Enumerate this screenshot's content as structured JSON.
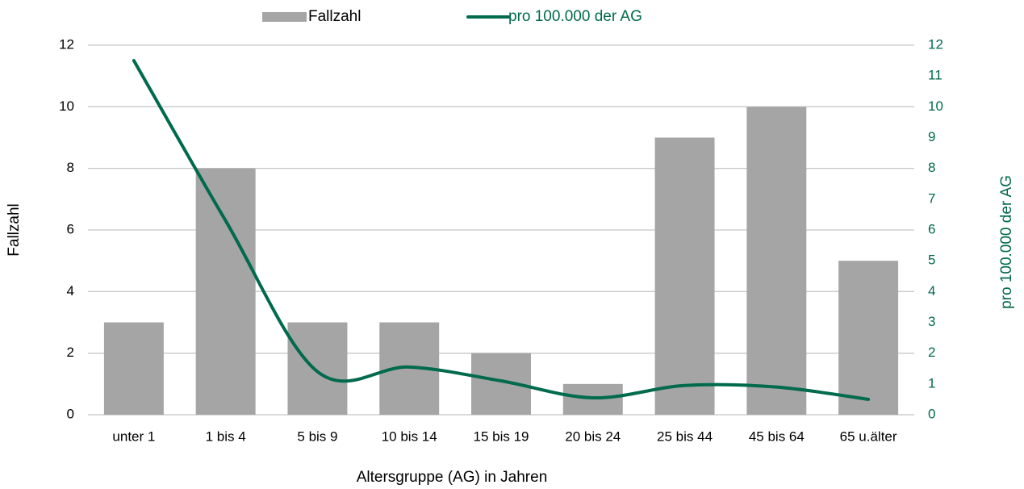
{
  "chart_data": {
    "type": "bar_line",
    "categories": [
      "unter 1",
      "1 bis 4",
      "5 bis 9",
      "10 bis 14",
      "15 bis 19",
      "20 bis 24",
      "25 bis 44",
      "45 bis 64",
      "65 u.älter"
    ],
    "series": [
      {
        "name": "Fallzahl",
        "type": "bar",
        "color": "#a5a5a5",
        "values": [
          3,
          8,
          3,
          3,
          2,
          1,
          9,
          10,
          5
        ]
      },
      {
        "name": "pro 100.000 der AG",
        "type": "line",
        "axis": "y2",
        "color": "#006a4d",
        "smooth": true,
        "values": [
          11.5,
          6.3,
          1.4,
          1.55,
          1.1,
          0.55,
          0.95,
          0.9,
          0.5
        ]
      }
    ],
    "xlabel": "Altersgruppe (AG) in Jahren",
    "ylabel": "Fallzahl",
    "y2label": "pro 100.000 der AG",
    "ylim": [
      0,
      12
    ],
    "yticks": [
      0,
      2,
      4,
      6,
      8,
      10,
      12
    ],
    "y2lim": [
      0,
      12
    ],
    "y2ticks": [
      0,
      1,
      2,
      3,
      4,
      5,
      6,
      7,
      8,
      9,
      10,
      11,
      12
    ],
    "grid": true,
    "legend": "top"
  }
}
